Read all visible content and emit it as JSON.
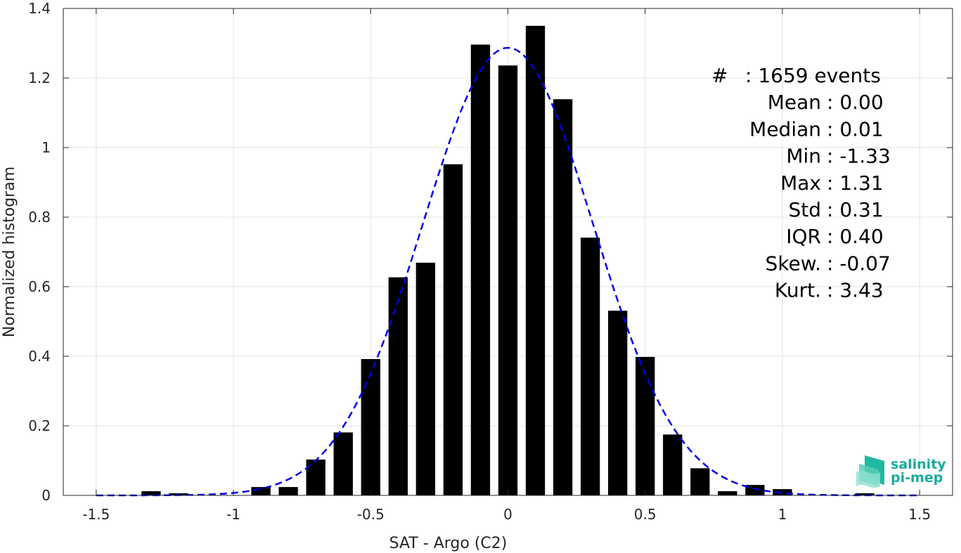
{
  "chart_data": {
    "type": "bar",
    "xlabel": "SAT - Argo (C2)",
    "ylabel": "Normalized histogram",
    "xlim": [
      -1.62,
      1.62
    ],
    "ylim": [
      0,
      1.4
    ],
    "xticks": [
      -1.5,
      -1,
      -0.5,
      0,
      0.5,
      1,
      1.5
    ],
    "xtick_labels": [
      "-1.5",
      "-1",
      "-0.5",
      "0",
      "0.5",
      "1",
      "1.5"
    ],
    "yticks": [
      0,
      0.2,
      0.4,
      0.6,
      0.8,
      1,
      1.2,
      1.4
    ],
    "ytick_labels": [
      "0",
      "0.2",
      "0.4",
      "0.6",
      "0.8",
      "1",
      "1.2",
      "1.4"
    ],
    "grid": true,
    "bar_color": "#000000",
    "bar_width": 0.07,
    "bins": [
      {
        "x": -1.3,
        "value": 0.012
      },
      {
        "x": -1.2,
        "value": 0.006
      },
      {
        "x": -0.9,
        "value": 0.024
      },
      {
        "x": -0.8,
        "value": 0.024
      },
      {
        "x": -0.7,
        "value": 0.103
      },
      {
        "x": -0.6,
        "value": 0.181
      },
      {
        "x": -0.5,
        "value": 0.392
      },
      {
        "x": -0.4,
        "value": 0.627
      },
      {
        "x": -0.3,
        "value": 0.669
      },
      {
        "x": -0.2,
        "value": 0.952
      },
      {
        "x": -0.1,
        "value": 1.296
      },
      {
        "x": 0.0,
        "value": 1.236
      },
      {
        "x": 0.1,
        "value": 1.35
      },
      {
        "x": 0.2,
        "value": 1.139
      },
      {
        "x": 0.3,
        "value": 0.741
      },
      {
        "x": 0.4,
        "value": 0.531
      },
      {
        "x": 0.5,
        "value": 0.398
      },
      {
        "x": 0.6,
        "value": 0.175
      },
      {
        "x": 0.7,
        "value": 0.078
      },
      {
        "x": 0.8,
        "value": 0.012
      },
      {
        "x": 0.9,
        "value": 0.03
      },
      {
        "x": 1.0,
        "value": 0.018
      },
      {
        "x": 1.3,
        "value": 0.006
      }
    ],
    "fit_curve": {
      "style": "dashed",
      "color": "#0000e6",
      "mean": 0.0,
      "std": 0.31
    },
    "annotations": [
      {
        "label": "#",
        "value": ": 1659 events"
      },
      {
        "label": "Mean",
        "value": ": 0.00"
      },
      {
        "label": "Median",
        "value": ": 0.01"
      },
      {
        "label": "Min",
        "value": ": -1.33"
      },
      {
        "label": "Max",
        "value": ": 1.31"
      },
      {
        "label": "Std",
        "value": ": 0.31"
      },
      {
        "label": "IQR",
        "value": ": 0.40"
      },
      {
        "label": "Skew.",
        "value": ": -0.07"
      },
      {
        "label": "Kurt.",
        "value": ": 3.43"
      }
    ]
  },
  "logo": {
    "line1": "salinity",
    "line2": "pi-mep",
    "color": "#1aab9b"
  }
}
